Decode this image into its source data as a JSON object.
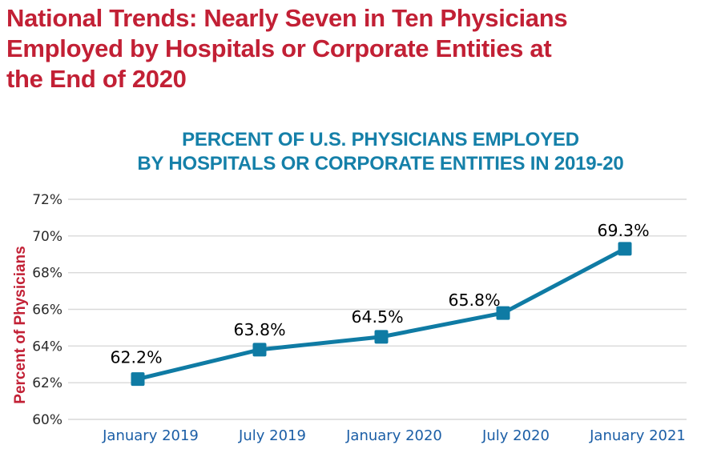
{
  "page": {
    "title": "National Trends: Nearly Seven in Ten Physicians\nEmployed by Hospitals or Corporate Entities at\nthe End of 2020"
  },
  "chart_data": {
    "type": "line",
    "title": "PERCENT OF U.S. PHYSICIANS EMPLOYED\nBY HOSPITALS OR CORPORATE ENTITIES IN 2019-20",
    "categories": [
      "January 2019",
      "July 2019",
      "January 2020",
      "July 2020",
      "January 2021"
    ],
    "values": [
      62.2,
      63.8,
      64.5,
      65.8,
      69.3
    ],
    "value_labels": [
      "62.2%",
      "63.8%",
      "64.5%",
      "65.8%",
      "69.3%"
    ],
    "ylabel": "Percent of Physicians",
    "xlabel": "",
    "ylim": [
      60,
      72
    ],
    "ytick_step": 2,
    "ytick_labels": [
      "60%",
      "62%",
      "64%",
      "66%",
      "68%",
      "70%",
      "72%"
    ],
    "grid": true,
    "legend": "none",
    "marker": "square",
    "layout_hints": {
      "label_dx": [
        -2,
        0,
        -5,
        -36,
        -2
      ],
      "label_dy": [
        -20,
        -18,
        -18,
        -9,
        -16
      ]
    },
    "colors": {
      "page_title": "#C22035",
      "chart_title": "#1580A9",
      "ylabel": "#C22035",
      "line": "#0F7BA4",
      "marker": "#0F7BA4",
      "grid": "#D9D9D9",
      "ytick_text": "#2B2B2B",
      "xtick_text": "#1B5EA6",
      "value_label_text": "#000000"
    }
  }
}
